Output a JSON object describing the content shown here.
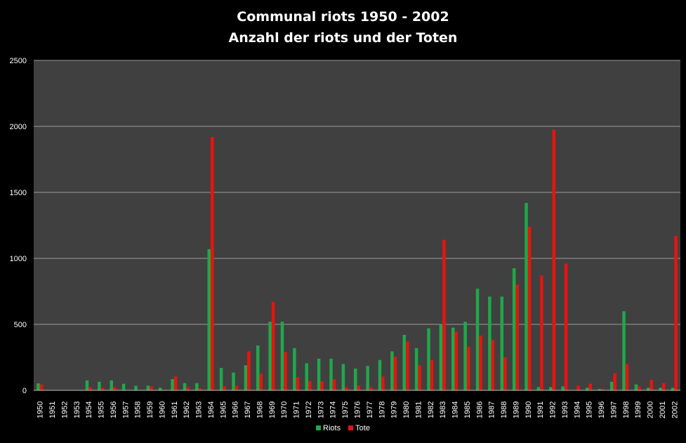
{
  "chart_data": {
    "type": "bar",
    "title": "Communal riots 1950 - 2002",
    "subtitle": "Anzahl der riots und der Toten",
    "xlabel": "",
    "ylabel": "",
    "ylim": [
      0,
      2500
    ],
    "yticks": [
      0,
      500,
      1000,
      1500,
      2000,
      2500
    ],
    "grid": true,
    "legend_position": "bottom",
    "categories": [
      "1950",
      "1951",
      "1952",
      "1953",
      "1954",
      "1955",
      "1956",
      "1957",
      "1958",
      "1959",
      "1960",
      "1961",
      "1962",
      "1963",
      "1964",
      "1965",
      "1966",
      "1967",
      "1968",
      "1969",
      "1970",
      "1971",
      "1972",
      "1973",
      "1974",
      "1975",
      "1976",
      "1977",
      "1978",
      "1979",
      "1980",
      "1981",
      "1982",
      "1983",
      "1984",
      "1985",
      "1986",
      "1987",
      "1988",
      "1989",
      "1990",
      "1991",
      "1992",
      "1993",
      "1994",
      "1995",
      "1996",
      "1997",
      "1998",
      "1999",
      "2000",
      "2001",
      "2002"
    ],
    "series": [
      {
        "name": "Riots",
        "color": "#1fa84a",
        "values": [
          53,
          0,
          0,
          0,
          75,
          65,
          75,
          50,
          35,
          35,
          20,
          85,
          55,
          55,
          1070,
          170,
          135,
          190,
          340,
          520,
          520,
          320,
          205,
          240,
          240,
          200,
          165,
          185,
          230,
          295,
          420,
          320,
          470,
          500,
          475,
          520,
          770,
          710,
          710,
          925,
          1420,
          25,
          25,
          30,
          0,
          20,
          10,
          65,
          600,
          45,
          20,
          20,
          20
        ]
      },
      {
        "name": "Tote",
        "color": "#e8130f",
        "values": [
          45,
          0,
          0,
          0,
          25,
          20,
          25,
          0,
          0,
          30,
          5,
          105,
          25,
          15,
          1920,
          30,
          35,
          295,
          125,
          670,
          290,
          100,
          70,
          70,
          85,
          25,
          35,
          25,
          105,
          255,
          370,
          190,
          230,
          1140,
          445,
          330,
          415,
          380,
          250,
          800,
          1240,
          870,
          1975,
          960,
          35,
          50,
          10,
          130,
          200,
          30,
          80,
          55,
          1170
        ]
      }
    ]
  },
  "legend": {
    "riots": "Riots",
    "tote": "Tote"
  }
}
